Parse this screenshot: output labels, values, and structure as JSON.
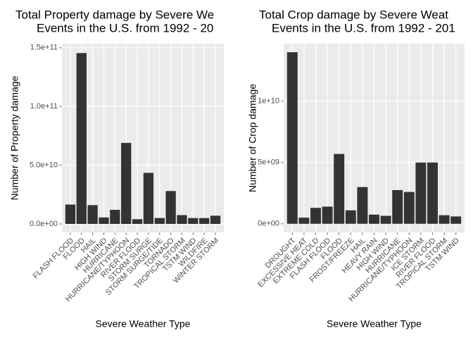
{
  "chart_data": [
    {
      "type": "bar",
      "title": [
        "Total Property damage by Severe We",
        "Events in the U.S. from 1992 - 20"
      ],
      "x_label": "Severe Weather Type",
      "y_label": "Number of Property damage",
      "categories": [
        "FLASH FLOOD",
        "FLOOD",
        "HAIL",
        "HIGH WIND",
        "HURRICANE",
        "HURRICANE/TYPHOON",
        "RIVER FLOOD",
        "STORM SURGE",
        "STORM SURGE/TIDE",
        "TORNADO",
        "TROPICAL STORM",
        "TSTM WIND",
        "WILDFIRE",
        "WINTER STORM"
      ],
      "values": [
        16500000000,
        145500000000,
        16000000000,
        5500000000,
        12000000000,
        69000000000,
        4000000000,
        43500000000,
        5000000000,
        28000000000,
        7500000000,
        5000000000,
        5000000000,
        7000000000
      ],
      "color": "#333333",
      "ylim": [
        -7200000000,
        153500000000
      ],
      "yticks": [
        {
          "value": 0,
          "label": "0.0e+00"
        },
        {
          "value": 50000000000,
          "label": "5.0e+10"
        },
        {
          "value": 100000000000,
          "label": "1.0e+11"
        },
        {
          "value": 150000000000,
          "label": "1.5e+11"
        }
      ],
      "grid": true
    },
    {
      "type": "bar",
      "title": [
        "Total Crop damage by Severe Weat",
        "Events in the U.S. from 1992 - 201"
      ],
      "x_label": "Severe Weather Type",
      "y_label": "Number of Crop damage",
      "categories": [
        "DROUGHT",
        "EXCESSIVE HEAT",
        "EXTREME COLD",
        "FLASH FLOOD",
        "FLOOD",
        "FROST/FREEZE",
        "HAIL",
        "HEAVY RAIN",
        "HIGH WIND",
        "HURRICANE",
        "HURRICANE/TYPHOON",
        "ICE STORM",
        "RIVER FLOOD",
        "TROPICAL STORM",
        "TSTM WIND"
      ],
      "values": [
        14000000000,
        500000000,
        1300000000,
        1400000000,
        5700000000,
        1100000000,
        3000000000,
        750000000,
        650000000,
        2750000000,
        2600000000,
        5000000000,
        5000000000,
        700000000,
        600000000
      ],
      "color": "#333333",
      "ylim": [
        -700000000,
        14700000000
      ],
      "yticks": [
        {
          "value": 0,
          "label": "0e+00"
        },
        {
          "value": 5000000000,
          "label": "5e+09"
        },
        {
          "value": 10000000000,
          "label": "1e+10"
        }
      ],
      "grid": true
    }
  ]
}
